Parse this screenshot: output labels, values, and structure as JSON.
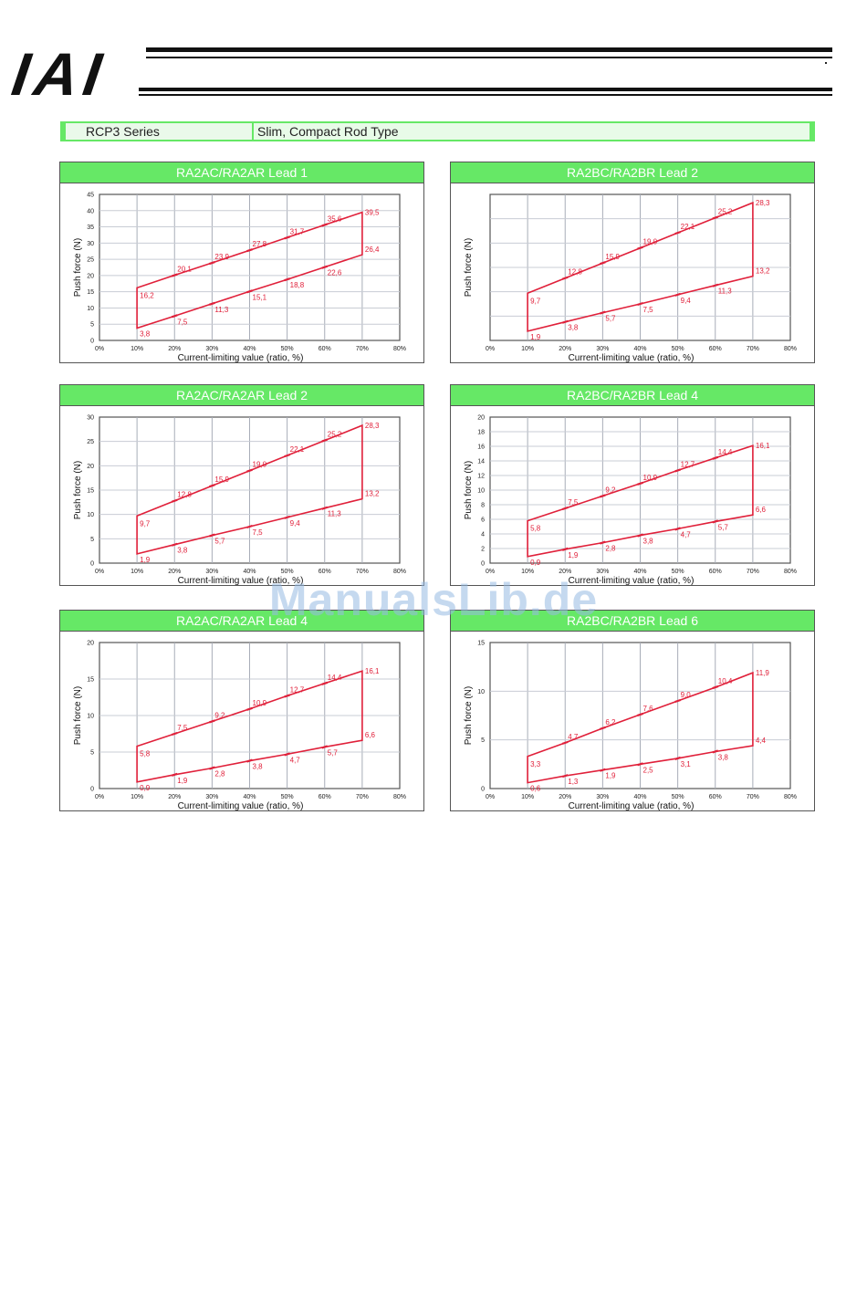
{
  "header": {
    "logo_text": "IAI"
  },
  "series_bar": {
    "series": "RCP3 Series",
    "type": "Slim, Compact Rod Type"
  },
  "watermark": "ManualsLib.de",
  "style": {
    "line_color": "#e0203a",
    "label_color": "#e0203a",
    "title_bg": "#66e866"
  },
  "chart_data": [
    {
      "type": "line",
      "title": "RA2AC/RA2AR Lead 1",
      "xlabel": "Current-limiting value (ratio, %)",
      "ylabel": "Push force (N)",
      "x": [
        10,
        20,
        30,
        40,
        50,
        60,
        70
      ],
      "xticks": [
        "0%",
        "10%",
        "20%",
        "30%",
        "40%",
        "50%",
        "60%",
        "70%",
        "80%"
      ],
      "yticks": [
        0,
        5,
        10,
        15,
        20,
        25,
        30,
        35,
        40,
        45
      ],
      "xlim": [
        0,
        80
      ],
      "ylim": [
        0,
        45
      ],
      "upper": [
        16.2,
        20.1,
        23.9,
        27.8,
        31.7,
        35.6,
        39.5
      ],
      "lower": [
        3.8,
        7.5,
        11.3,
        15.1,
        18.8,
        22.6,
        26.4
      ],
      "grid": true
    },
    {
      "type": "line",
      "title": "RA2BC/RA2BR Lead 2",
      "xlabel": "Current-limiting value (ratio, %)",
      "ylabel": "Push force (N)",
      "x": [
        10,
        20,
        30,
        40,
        50,
        60,
        70
      ],
      "xticks": [
        "0%",
        "10%",
        "20%",
        "30%",
        "40%",
        "50%",
        "60%",
        "70%",
        "80%"
      ],
      "yticks": [],
      "xlim": [
        0,
        80
      ],
      "ylim": [
        0,
        30
      ],
      "upper": [
        9.7,
        12.8,
        15.9,
        19.0,
        22.1,
        25.2,
        28.3
      ],
      "lower": [
        1.9,
        3.8,
        5.7,
        7.5,
        9.4,
        11.3,
        13.2
      ],
      "grid": true
    },
    {
      "type": "line",
      "title": "RA2AC/RA2AR Lead 2",
      "xlabel": "Current-limiting value (ratio, %)",
      "ylabel": "Push force (N)",
      "x": [
        10,
        20,
        30,
        40,
        50,
        60,
        70
      ],
      "xticks": [
        "0%",
        "10%",
        "20%",
        "30%",
        "40%",
        "50%",
        "60%",
        "70%",
        "80%"
      ],
      "yticks": [
        0,
        5,
        10,
        15,
        20,
        25,
        30
      ],
      "xlim": [
        0,
        80
      ],
      "ylim": [
        0,
        30
      ],
      "upper": [
        9.7,
        12.8,
        15.9,
        19.0,
        22.1,
        25.2,
        28.3
      ],
      "lower": [
        1.9,
        3.8,
        5.7,
        7.5,
        9.4,
        11.3,
        13.2
      ],
      "grid": true
    },
    {
      "type": "line",
      "title": "RA2BC/RA2BR Lead 4",
      "xlabel": "Current-limiting value (ratio, %)",
      "ylabel": "Push force (N)",
      "x": [
        10,
        20,
        30,
        40,
        50,
        60,
        70
      ],
      "xticks": [
        "0%",
        "10%",
        "20%",
        "30%",
        "40%",
        "50%",
        "60%",
        "70%",
        "80%"
      ],
      "yticks": [
        0,
        2,
        4,
        6,
        8,
        10,
        12,
        14,
        16,
        18,
        20
      ],
      "xlim": [
        0,
        80
      ],
      "ylim": [
        0,
        20
      ],
      "upper": [
        5.8,
        7.5,
        9.2,
        10.9,
        12.7,
        14.4,
        16.1
      ],
      "lower": [
        0.9,
        1.9,
        2.8,
        3.8,
        4.7,
        5.7,
        6.6
      ],
      "grid": true
    },
    {
      "type": "line",
      "title": "RA2AC/RA2AR Lead 4",
      "xlabel": "Current-limiting value (ratio, %)",
      "ylabel": "Push force (N)",
      "x": [
        10,
        20,
        30,
        40,
        50,
        60,
        70
      ],
      "xticks": [
        "0%",
        "10%",
        "20%",
        "30%",
        "40%",
        "50%",
        "60%",
        "70%",
        "80%"
      ],
      "yticks": [
        0,
        5,
        10,
        15,
        20
      ],
      "xlim": [
        0,
        80
      ],
      "ylim": [
        0,
        20
      ],
      "upper": [
        5.8,
        7.5,
        9.2,
        10.9,
        12.7,
        14.4,
        16.1
      ],
      "lower": [
        0.9,
        1.9,
        2.8,
        3.8,
        4.7,
        5.7,
        6.6
      ],
      "grid": true
    },
    {
      "type": "line",
      "title": "RA2BC/RA2BR Lead 6",
      "xlabel": "Current-limiting value (ratio, %)",
      "ylabel": "Push force (N)",
      "x": [
        10,
        20,
        30,
        40,
        50,
        60,
        70
      ],
      "xticks": [
        "0%",
        "10%",
        "20%",
        "30%",
        "40%",
        "50%",
        "60%",
        "70%",
        "80%"
      ],
      "yticks": [
        0,
        5,
        10,
        15
      ],
      "xlim": [
        0,
        80
      ],
      "ylim": [
        0,
        15
      ],
      "upper": [
        3.3,
        4.7,
        6.2,
        7.6,
        9.0,
        10.4,
        11.9
      ],
      "lower": [
        0.6,
        1.3,
        1.9,
        2.5,
        3.1,
        3.8,
        4.4
      ],
      "grid": true
    }
  ]
}
